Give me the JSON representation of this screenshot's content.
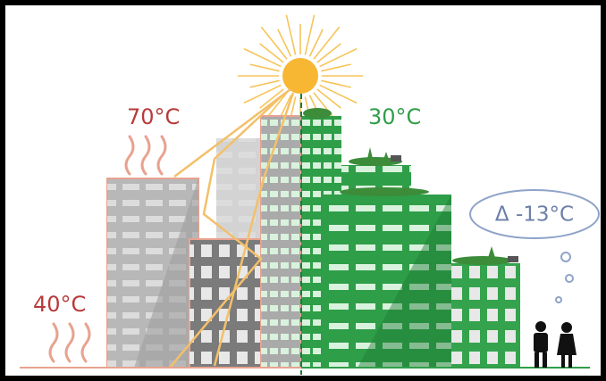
{
  "labels": {
    "hot_roof": "70°C",
    "green_roof": "30°C",
    "street": "40°C",
    "difference": "Δ -13°C"
  }
}
